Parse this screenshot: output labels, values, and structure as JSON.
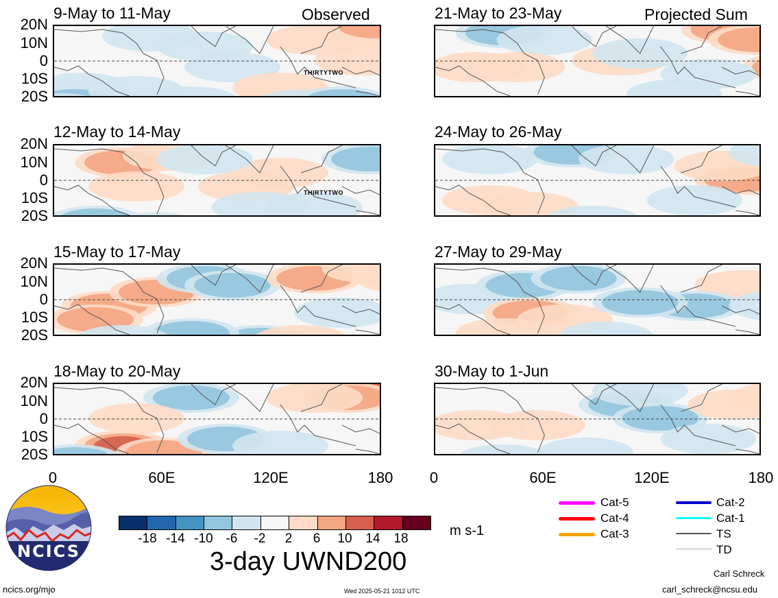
{
  "panels": [
    {
      "id": "p1",
      "title": "9-May to 11-May",
      "corner_label": "Observed",
      "storm_label": "THIRTYTWO"
    },
    {
      "id": "p2",
      "title": "12-May to 14-May",
      "corner_label": "",
      "storm_label": "THIRTYTWO"
    },
    {
      "id": "p3",
      "title": "15-May to 17-May",
      "corner_label": "",
      "storm_label": ""
    },
    {
      "id": "p4",
      "title": "18-May to 20-May",
      "corner_label": "",
      "storm_label": ""
    },
    {
      "id": "p5",
      "title": "21-May to 23-May",
      "corner_label": "Projected Sum",
      "storm_label": ""
    },
    {
      "id": "p6",
      "title": "24-May to 26-May",
      "corner_label": "",
      "storm_label": ""
    },
    {
      "id": "p7",
      "title": "27-May to 29-May",
      "corner_label": "",
      "storm_label": ""
    },
    {
      "id": "p8",
      "title": "30-May to 1-Jun",
      "corner_label": "",
      "storm_label": ""
    }
  ],
  "lat_labels": [
    "20N",
    "10N",
    "0",
    "10S",
    "20S"
  ],
  "lon_labels": [
    "0",
    "60E",
    "120E",
    "180"
  ],
  "colorbar": {
    "ticks": [
      "-18",
      "-14",
      "-10",
      "-6",
      "-2",
      "2",
      "6",
      "10",
      "14",
      "18"
    ],
    "colors": [
      "#08306b",
      "#2166ac",
      "#4393c3",
      "#92c5de",
      "#d1e5f0",
      "#f7f7f7",
      "#fddbc7",
      "#f4a582",
      "#d6604d",
      "#b2182b",
      "#67001f"
    ],
    "units": "m s-1"
  },
  "main_title": "3-day UWND200",
  "logo_text": "NCICS",
  "legend": {
    "items": [
      {
        "label": "Cat-5",
        "color": "#ff00ff"
      },
      {
        "label": "Cat-4",
        "color": "#ff0000"
      },
      {
        "label": "Cat-3",
        "color": "#ffa500"
      },
      {
        "label": "Cat-2",
        "color": "#0000cd"
      },
      {
        "label": "Cat-1",
        "color": "#00ffff"
      },
      {
        "label": "TS",
        "color": "#555555"
      },
      {
        "label": "TD",
        "color": "#aaaaaa"
      }
    ]
  },
  "footer": {
    "left": "ncics.org/mjo",
    "center": "Wed 2025-05-21 1012 UTC",
    "author": "Carl Schreck",
    "email": "carl_schreck@ncsu.edu"
  },
  "fields": {
    "p1": [
      [
        40,
        90,
        -1
      ],
      [
        30,
        110,
        -2
      ],
      [
        10,
        120,
        -2
      ],
      [
        40,
        125,
        -3
      ],
      [
        140,
        15,
        -1
      ],
      [
        220,
        30,
        -1
      ],
      [
        260,
        60,
        -1
      ],
      [
        330,
        90,
        1
      ],
      [
        380,
        20,
        1
      ],
      [
        450,
        50,
        1
      ],
      [
        460,
        10,
        1
      ],
      [
        470,
        0,
        2
      ],
      [
        200,
        110,
        -1
      ],
      [
        120,
        95,
        -1
      ],
      [
        360,
        115,
        -1
      ],
      [
        420,
        110,
        -2
      ]
    ],
    "p2": [
      [
        100,
        25,
        2
      ],
      [
        120,
        60,
        1
      ],
      [
        170,
        15,
        1
      ],
      [
        280,
        60,
        1
      ],
      [
        330,
        40,
        1
      ],
      [
        500,
        5,
        -3
      ],
      [
        460,
        20,
        -2
      ],
      [
        60,
        110,
        -2
      ],
      [
        150,
        120,
        -3
      ],
      [
        300,
        90,
        -1
      ],
      [
        220,
        20,
        -1
      ],
      [
        380,
        90,
        -1
      ]
    ],
    "p3": [
      [
        80,
        60,
        2
      ],
      [
        60,
        80,
        2
      ],
      [
        150,
        40,
        2
      ],
      [
        220,
        20,
        -2
      ],
      [
        260,
        30,
        -2
      ],
      [
        300,
        110,
        -2
      ],
      [
        200,
        100,
        -2
      ],
      [
        360,
        110,
        1
      ],
      [
        380,
        20,
        2
      ],
      [
        460,
        5,
        1
      ],
      [
        510,
        20,
        1
      ],
      [
        100,
        110,
        -1
      ],
      [
        420,
        70,
        -1
      ]
    ],
    "p4": [
      [
        100,
        90,
        3
      ],
      [
        160,
        100,
        2
      ],
      [
        60,
        120,
        -3
      ],
      [
        30,
        110,
        -2
      ],
      [
        200,
        20,
        -2
      ],
      [
        250,
        80,
        -2
      ],
      [
        330,
        90,
        -1
      ],
      [
        470,
        10,
        3
      ],
      [
        430,
        20,
        2
      ],
      [
        380,
        20,
        1
      ],
      [
        120,
        50,
        1
      ]
    ],
    "p5": [
      [
        100,
        10,
        -2
      ],
      [
        160,
        20,
        -1
      ],
      [
        60,
        60,
        1
      ],
      [
        120,
        60,
        1
      ],
      [
        270,
        50,
        1
      ],
      [
        430,
        5,
        2
      ],
      [
        470,
        20,
        2
      ],
      [
        520,
        60,
        2
      ],
      [
        300,
        40,
        -1
      ],
      [
        400,
        70,
        -1
      ],
      [
        350,
        100,
        -1
      ]
    ],
    "p6": [
      [
        80,
        20,
        -1
      ],
      [
        200,
        10,
        -2
      ],
      [
        280,
        20,
        -1
      ],
      [
        140,
        90,
        1
      ],
      [
        80,
        80,
        1
      ],
      [
        450,
        50,
        2
      ],
      [
        420,
        30,
        1
      ],
      [
        380,
        80,
        -1
      ],
      [
        230,
        110,
        -1
      ],
      [
        500,
        10,
        -1
      ]
    ],
    "p7": [
      [
        50,
        50,
        -1
      ],
      [
        130,
        30,
        -2
      ],
      [
        210,
        20,
        -2
      ],
      [
        140,
        70,
        2
      ],
      [
        190,
        80,
        1
      ],
      [
        100,
        100,
        1
      ],
      [
        450,
        30,
        1
      ],
      [
        380,
        60,
        -2
      ],
      [
        300,
        55,
        -2
      ],
      [
        500,
        60,
        -1
      ],
      [
        250,
        105,
        -1
      ]
    ],
    "p8": [
      [
        280,
        30,
        -2
      ],
      [
        330,
        50,
        -2
      ],
      [
        300,
        10,
        -1
      ],
      [
        150,
        60,
        1
      ],
      [
        60,
        60,
        1
      ],
      [
        440,
        30,
        1
      ],
      [
        500,
        20,
        1
      ],
      [
        400,
        80,
        -1
      ],
      [
        220,
        100,
        -1
      ],
      [
        100,
        110,
        -1
      ]
    ]
  }
}
